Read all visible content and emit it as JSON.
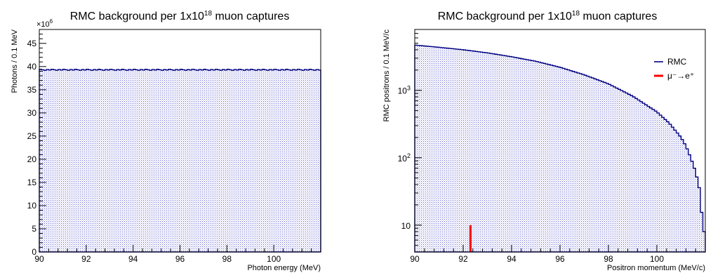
{
  "chart_data": [
    {
      "type": "histogram",
      "title": {
        "main": "RMC background per 1x10",
        "sup": "18",
        "rest": " muon captures"
      },
      "xlabel": "Photon energy (MeV)",
      "ylabel": "Photons / 0.1 MeV",
      "y_multiplier": {
        "base": "×10",
        "exp": "6"
      },
      "xlim": [
        90,
        102
      ],
      "ylim": [
        0,
        48
      ],
      "yscale": "linear",
      "x_ticks": [
        90,
        92,
        94,
        96,
        98,
        100
      ],
      "y_ticks": [
        0,
        5,
        10,
        15,
        20,
        25,
        30,
        35,
        40,
        45
      ],
      "series": [
        {
          "name": "",
          "color": "#000080",
          "fill": "hatched",
          "level": 39.3
        }
      ],
      "grid": false
    },
    {
      "type": "histogram",
      "title": {
        "main": "RMC background per 1x10",
        "sup": "18",
        "rest": " muon captures"
      },
      "xlabel": "Positron momentum (MeV/c)",
      "ylabel": "RMC positrons / 0.1 MeV/c",
      "xlim": [
        90,
        102
      ],
      "ylim": [
        4,
        8000
      ],
      "yscale": "log",
      "x_ticks": [
        90,
        92,
        94,
        96,
        98,
        100
      ],
      "y_tick_labels": [
        {
          "value": 10,
          "base": "10",
          "exp": ""
        },
        {
          "value": 100,
          "base": "10",
          "exp": "2"
        },
        {
          "value": 1000,
          "base": "10",
          "exp": "3"
        }
      ],
      "series": [
        {
          "name": "RMC",
          "color": "#000080",
          "fill": "hatched",
          "x": [
            90,
            91,
            92,
            93,
            94,
            95,
            96,
            97,
            98,
            99,
            100,
            100.5,
            101,
            101.2,
            101.4,
            101.6,
            101.8,
            101.9,
            102
          ],
          "y": [
            4700,
            4350,
            4000,
            3600,
            3150,
            2700,
            2200,
            1700,
            1250,
            820,
            480,
            330,
            200,
            150,
            100,
            62,
            30,
            8,
            8
          ]
        },
        {
          "name": "μ⁻→e⁺",
          "color": "#ff0000",
          "fill": "none",
          "x": [
            92.3
          ],
          "y": [
            10
          ]
        }
      ],
      "legend": {
        "position": "top-right",
        "entries": [
          {
            "label": "RMC",
            "color": "#000080"
          },
          {
            "label": "μ⁻→e⁺",
            "color": "#ff0000"
          }
        ]
      },
      "grid": false
    }
  ]
}
